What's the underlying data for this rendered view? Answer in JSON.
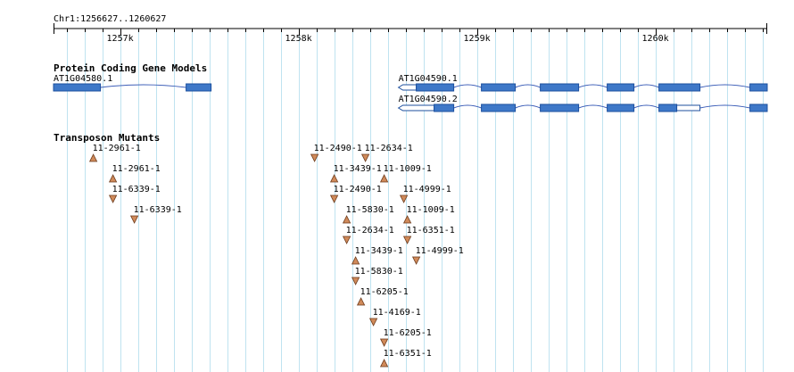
{
  "ruler": {
    "location_label": "Chr1:1256627..1260627",
    "start": 1256627,
    "end": 1260627,
    "ticks": [
      {
        "pos": 1257000,
        "label": "1257k"
      },
      {
        "pos": 1258000,
        "label": "1258k"
      },
      {
        "pos": 1259000,
        "label": "1259k"
      },
      {
        "pos": 1260000,
        "label": "1260k"
      }
    ]
  },
  "tracks": {
    "genes": {
      "title": "Protein Coding Gene Models",
      "models": [
        {
          "name": "AT1G04580.1",
          "strand": "+",
          "exons": [
            [
              1256627,
              1256890
            ],
            [
              1257370,
              1257510
            ]
          ],
          "utrs": []
        },
        {
          "name": "AT1G04590.1",
          "strand": "-",
          "exons": [
            [
              1258660,
              1258870
            ],
            [
              1259025,
              1259215
            ],
            [
              1259355,
              1259570
            ],
            [
              1259730,
              1259880
            ],
            [
              1260020,
              1260250
            ],
            [
              1260530,
              1260627
            ]
          ],
          "utrs": [
            [
              1258560,
              1258660
            ]
          ]
        },
        {
          "name": "AT1G04590.2",
          "strand": "-",
          "exons": [
            [
              1258760,
              1258870
            ],
            [
              1259025,
              1259215
            ],
            [
              1259355,
              1259570
            ],
            [
              1259730,
              1259880
            ],
            [
              1260020,
              1260120
            ],
            [
              1260530,
              1260627
            ]
          ],
          "utrs": [
            [
              1258560,
              1258760
            ],
            [
              1260120,
              1260250
            ]
          ]
        }
      ]
    },
    "transposons": {
      "title": "Transposon Mutants",
      "mutants": [
        {
          "name": "11-2961-1",
          "pos": 1256850,
          "dir": "up",
          "row": 0
        },
        {
          "name": "11-2961-1",
          "pos": 1256960,
          "dir": "up",
          "row": 1
        },
        {
          "name": "11-6339-1",
          "pos": 1256960,
          "dir": "down",
          "row": 2
        },
        {
          "name": "11-6339-1",
          "pos": 1257080,
          "dir": "down",
          "row": 3
        },
        {
          "name": "11-2490-1",
          "pos": 1258090,
          "dir": "down",
          "row": 0
        },
        {
          "name": "11-2634-1",
          "pos": 1258375,
          "dir": "down",
          "row": 0
        },
        {
          "name": "11-3439-1",
          "pos": 1258200,
          "dir": "up",
          "row": 1
        },
        {
          "name": "11-1009-1",
          "pos": 1258480,
          "dir": "up",
          "row": 1
        },
        {
          "name": "11-2490-1",
          "pos": 1258200,
          "dir": "down",
          "row": 2
        },
        {
          "name": "11-4999-1",
          "pos": 1258590,
          "dir": "down",
          "row": 2
        },
        {
          "name": "11-5830-1",
          "pos": 1258270,
          "dir": "up",
          "row": 3
        },
        {
          "name": "11-1009-1",
          "pos": 1258610,
          "dir": "up",
          "row": 3
        },
        {
          "name": "11-2634-1",
          "pos": 1258270,
          "dir": "down",
          "row": 4
        },
        {
          "name": "11-6351-1",
          "pos": 1258610,
          "dir": "down",
          "row": 4
        },
        {
          "name": "11-3439-1",
          "pos": 1258320,
          "dir": "up",
          "row": 5
        },
        {
          "name": "11-4999-1",
          "pos": 1258660,
          "dir": "down",
          "row": 5
        },
        {
          "name": "11-5830-1",
          "pos": 1258320,
          "dir": "down",
          "row": 6
        },
        {
          "name": "11-6205-1",
          "pos": 1258350,
          "dir": "up",
          "row": 7
        },
        {
          "name": "11-4169-1",
          "pos": 1258420,
          "dir": "down",
          "row": 8
        },
        {
          "name": "11-6205-1",
          "pos": 1258480,
          "dir": "down",
          "row": 9
        },
        {
          "name": "11-6351-1",
          "pos": 1258480,
          "dir": "up",
          "row": 10
        }
      ]
    }
  },
  "colors": {
    "exon": "#3e78c8",
    "intron": "#3e5fb8",
    "insertion": "#d08a5a",
    "grid": "#bfe3f0"
  }
}
